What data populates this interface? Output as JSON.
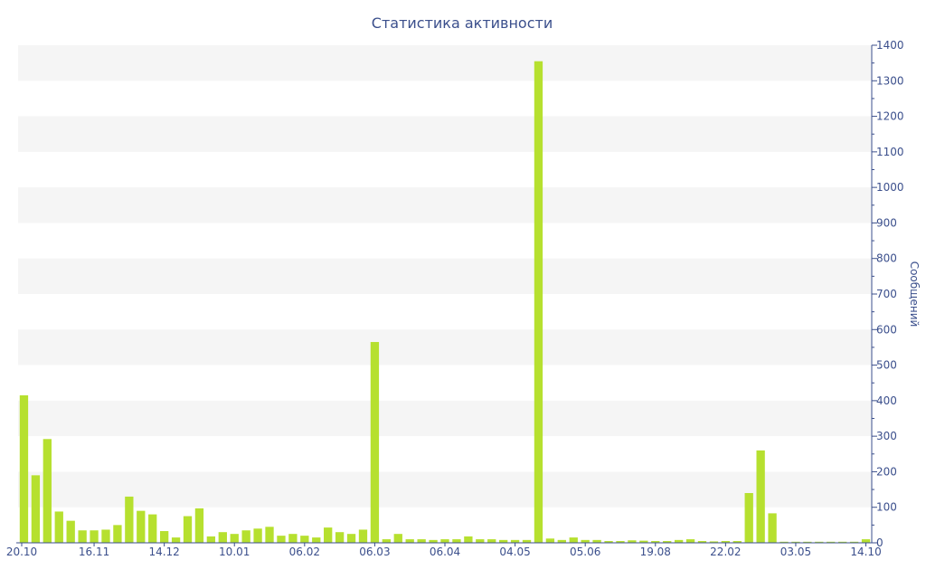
{
  "chart_data": {
    "type": "bar",
    "title": "Статистика активности",
    "ylabel": "Сообщений",
    "xlabel": "",
    "ylim": [
      0,
      1400
    ],
    "y_ticks": [
      0,
      100,
      200,
      300,
      400,
      500,
      600,
      700,
      800,
      900,
      1000,
      1100,
      1200,
      1300,
      1400
    ],
    "x_tick_labels": [
      {
        "index": 0,
        "label": "20.10"
      },
      {
        "index": 6,
        "label": "16.11"
      },
      {
        "index": 12,
        "label": "14.12"
      },
      {
        "index": 18,
        "label": "10.01"
      },
      {
        "index": 24,
        "label": "06.02"
      },
      {
        "index": 30,
        "label": "06.03"
      },
      {
        "index": 36,
        "label": "06.04"
      },
      {
        "index": 42,
        "label": "04.05"
      },
      {
        "index": 48,
        "label": "05.06"
      },
      {
        "index": 54,
        "label": "19.08"
      },
      {
        "index": 60,
        "label": "22.02"
      },
      {
        "index": 66,
        "label": "03.05"
      },
      {
        "index": 72,
        "label": "14.10"
      }
    ],
    "series": [
      {
        "values": [
          415,
          190,
          292,
          88,
          62,
          35,
          35,
          37,
          50,
          130,
          90,
          80,
          33,
          15,
          75,
          97,
          18,
          30,
          25,
          35,
          40,
          45,
          20,
          25,
          20,
          15,
          43,
          30,
          25,
          37,
          565,
          10,
          25,
          10,
          10,
          8,
          10,
          10,
          18,
          10,
          10,
          8,
          8,
          8,
          1355,
          12,
          8,
          15,
          8,
          8,
          5,
          5,
          7,
          6,
          5,
          5,
          8,
          10,
          5,
          4,
          5,
          5,
          140,
          260,
          83,
          3,
          3,
          3,
          3,
          3,
          3,
          3,
          10
        ]
      }
    ],
    "grid": true,
    "bar_color": "#b6e02f",
    "band_color": "#f5f5f5",
    "text_color": "#3b4f8c",
    "axis_color": "#3b4f8c"
  }
}
